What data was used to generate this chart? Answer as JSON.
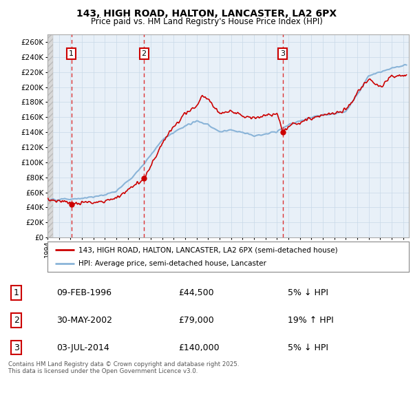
{
  "title": "143, HIGH ROAD, HALTON, LANCASTER, LA2 6PX",
  "subtitle": "Price paid vs. HM Land Registry's House Price Index (HPI)",
  "ylim": [
    0,
    270000
  ],
  "xlim_start": 1994.0,
  "xlim_end": 2025.5,
  "sale_dates": [
    1996.08,
    2002.41,
    2014.5
  ],
  "sale_prices": [
    44500,
    79000,
    140000
  ],
  "sale_labels": [
    "1",
    "2",
    "3"
  ],
  "hpi_color": "#8ab4d8",
  "price_color": "#cc0000",
  "dashed_line_color": "#dd3333",
  "grid_color": "#c8d8e8",
  "plot_bg_color": "#e8f0f8",
  "legend_entry1": "143, HIGH ROAD, HALTON, LANCASTER, LA2 6PX (semi-detached house)",
  "legend_entry2": "HPI: Average price, semi-detached house, Lancaster",
  "table_rows": [
    [
      "1",
      "09-FEB-1996",
      "£44,500",
      "5% ↓ HPI"
    ],
    [
      "2",
      "30-MAY-2002",
      "£79,000",
      "19% ↑ HPI"
    ],
    [
      "3",
      "03-JUL-2014",
      "£140,000",
      "5% ↓ HPI"
    ]
  ],
  "footer": "Contains HM Land Registry data © Crown copyright and database right 2025.\nThis data is licensed under the Open Government Licence v3.0."
}
